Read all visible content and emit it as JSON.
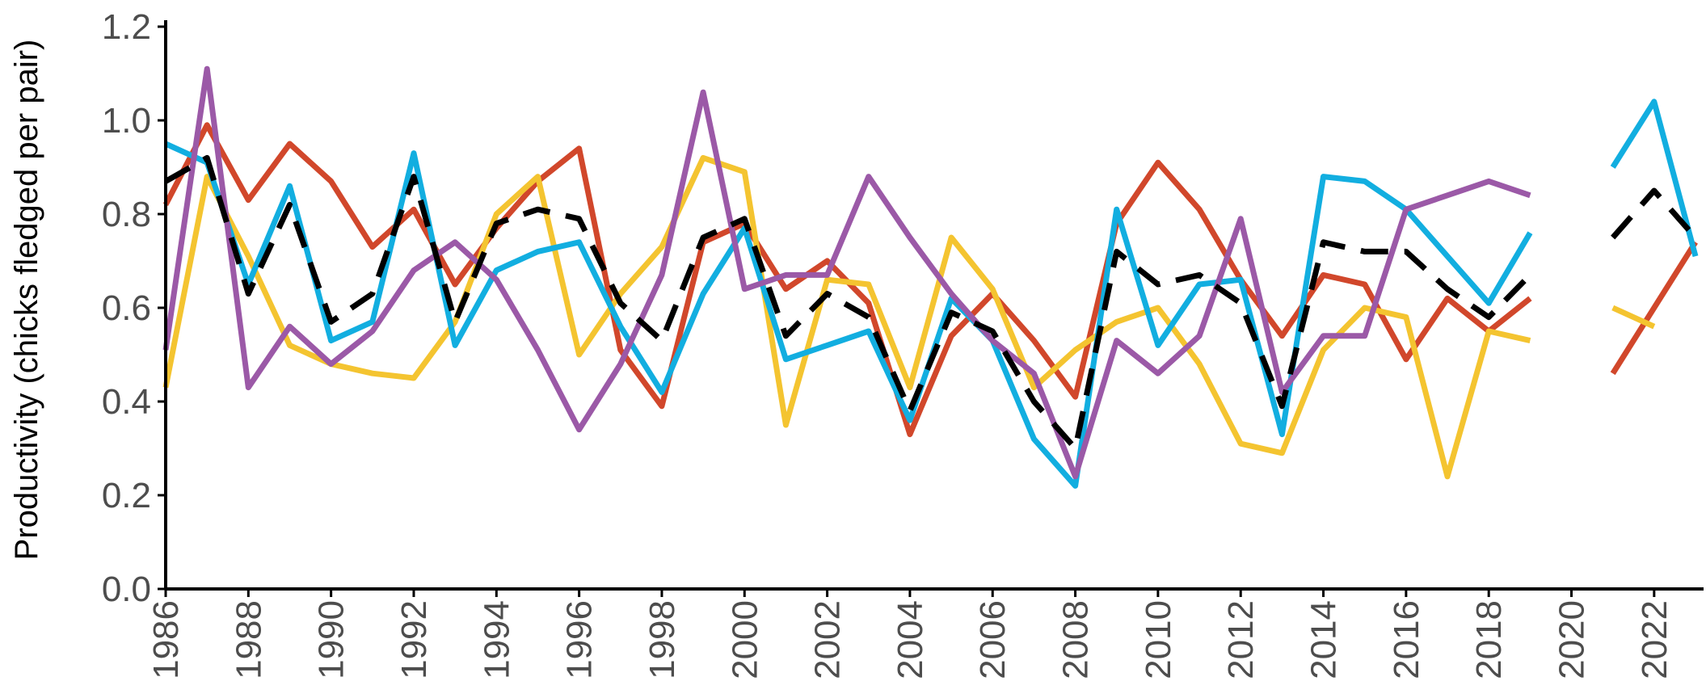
{
  "chart_data": {
    "type": "line",
    "ylabel": "Productivity (chicks fledged per pair)",
    "xlabel": "",
    "xlim": [
      1986,
      2023
    ],
    "ylim": [
      0,
      1.2
    ],
    "yticks": [
      "0.0",
      "0.2",
      "0.4",
      "0.6",
      "0.8",
      "1.0",
      "1.2"
    ],
    "xticks": [
      "1986",
      "1988",
      "1990",
      "1992",
      "1994",
      "1996",
      "1998",
      "2000",
      "2002",
      "2004",
      "2006",
      "2008",
      "2010",
      "2012",
      "2014",
      "2016",
      "2018",
      "2020",
      "2022"
    ],
    "x": [
      1986,
      1987,
      1988,
      1989,
      1990,
      1991,
      1992,
      1993,
      1994,
      1995,
      1996,
      1997,
      1998,
      1999,
      2000,
      2001,
      2002,
      2003,
      2004,
      2005,
      2006,
      2007,
      2008,
      2009,
      2010,
      2011,
      2012,
      2013,
      2014,
      2015,
      2016,
      2017,
      2018,
      2019,
      2020,
      2021,
      2022,
      2023
    ],
    "legend": false,
    "grid": false,
    "series": [
      {
        "color": "#d1472b",
        "dash": false,
        "values": [
          0.82,
          0.99,
          0.83,
          0.95,
          0.87,
          0.73,
          0.81,
          0.65,
          0.77,
          0.87,
          0.94,
          0.51,
          0.39,
          0.74,
          0.78,
          0.64,
          0.7,
          0.61,
          0.33,
          0.54,
          0.63,
          0.53,
          0.41,
          0.78,
          0.91,
          0.81,
          0.66,
          0.54,
          0.67,
          0.65,
          0.49,
          0.62,
          0.55,
          0.62,
          null,
          0.46,
          0.6,
          0.74
        ]
      },
      {
        "color": "#f4c430",
        "dash": false,
        "values": [
          0.43,
          0.88,
          0.71,
          0.52,
          0.48,
          0.46,
          0.45,
          0.57,
          0.8,
          0.88,
          0.5,
          0.63,
          0.73,
          0.92,
          0.89,
          0.35,
          0.66,
          0.65,
          0.43,
          0.75,
          0.64,
          0.43,
          0.51,
          0.57,
          0.6,
          0.48,
          0.31,
          0.29,
          0.51,
          0.6,
          0.58,
          0.24,
          0.55,
          0.53,
          null,
          0.6,
          0.56,
          null
        ]
      },
      {
        "color": "#12aee0",
        "dash": false,
        "values": [
          0.95,
          0.91,
          0.65,
          0.86,
          0.53,
          0.57,
          0.93,
          0.52,
          0.68,
          0.72,
          0.74,
          0.56,
          0.42,
          0.63,
          0.77,
          0.49,
          0.52,
          0.55,
          0.36,
          0.62,
          0.53,
          0.32,
          0.22,
          0.81,
          0.52,
          0.65,
          0.66,
          0.33,
          0.88,
          0.87,
          0.81,
          0.71,
          0.61,
          0.76,
          null,
          0.9,
          1.04,
          0.71
        ]
      },
      {
        "color": "#9b59a7",
        "dash": false,
        "values": [
          0.51,
          1.11,
          0.43,
          0.56,
          0.48,
          0.55,
          0.68,
          0.74,
          0.66,
          0.51,
          0.34,
          0.48,
          0.67,
          1.06,
          0.64,
          0.67,
          0.67,
          0.88,
          0.75,
          0.63,
          0.53,
          0.46,
          0.24,
          0.53,
          0.46,
          0.54,
          0.79,
          0.42,
          0.54,
          0.54,
          0.81,
          0.84,
          0.87,
          0.84,
          null,
          null,
          null,
          null
        ]
      },
      {
        "color": "#000000",
        "dash": true,
        "values": [
          0.87,
          0.92,
          0.63,
          0.82,
          0.57,
          0.63,
          0.88,
          0.57,
          0.78,
          0.81,
          0.79,
          0.61,
          0.53,
          0.75,
          0.79,
          0.54,
          0.63,
          0.58,
          0.38,
          0.59,
          0.55,
          0.4,
          0.3,
          0.72,
          0.65,
          0.67,
          0.61,
          0.39,
          0.74,
          0.72,
          0.72,
          0.64,
          0.58,
          0.67,
          null,
          0.75,
          0.85,
          0.75
        ]
      }
    ]
  }
}
